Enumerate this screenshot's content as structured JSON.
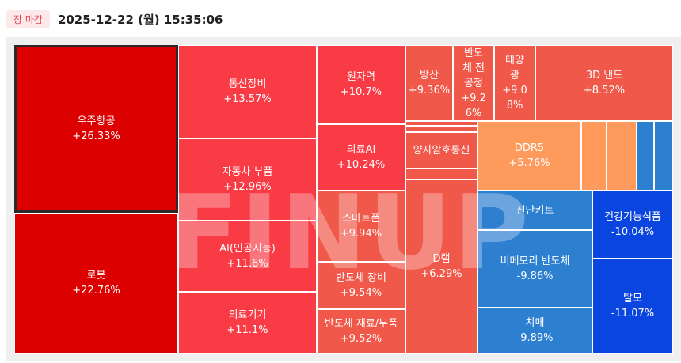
{
  "status_badge": "장 마감",
  "timestamp": "2025-12-22 (월) 15:35:06",
  "watermark": "FINUP",
  "tiles": {
    "space": {
      "name": "우주항공",
      "change": "+26.33%",
      "color": "#dc0000"
    },
    "robot": {
      "name": "로봇",
      "change": "+22.76%",
      "color": "#dc0000"
    },
    "telecom": {
      "name": "통신장비",
      "change": "+13.57%",
      "color": "#f83b45"
    },
    "auto_parts": {
      "name": "자동차 부품",
      "change": "+12.96%",
      "color": "#f83b45"
    },
    "ai": {
      "name": "AI(인공지능)",
      "change": "+11.6%",
      "color": "#f83b45"
    },
    "medical_device": {
      "name": "의료기기",
      "change": "+11.1%",
      "color": "#f83b45"
    },
    "nuclear": {
      "name": "원자력",
      "change": "+10.7%",
      "color": "#f83b45"
    },
    "medical_ai": {
      "name": "의료AI",
      "change": "+10.24%",
      "color": "#f83b45"
    },
    "smartphone": {
      "name": "스마트폰",
      "change": "+9.94%",
      "color": "#f0584a"
    },
    "semi_equipment": {
      "name": "반도체 장비",
      "change": "+9.54%",
      "color": "#f0584a"
    },
    "semi_materials": {
      "name": "반도체 재료/부품",
      "change": "+9.52%",
      "color": "#f0584a"
    },
    "defense": {
      "name": "방산",
      "change": "+9.36%",
      "color": "#f0584a"
    },
    "semi_front": {
      "name": "반도체 전공정",
      "change": "+9.26%",
      "color": "#f0584a"
    },
    "solar": {
      "name": "태양광",
      "change": "+9.08%",
      "color": "#f0584a"
    },
    "nand3d": {
      "name": "3D 낸드",
      "change": "+8.52%",
      "color": "#f0584a"
    },
    "quantum_crypto": {
      "name": "양자암호통신",
      "change": "",
      "color": "#f0584a"
    },
    "dram": {
      "name": "D램",
      "change": "+6.29%",
      "color": "#f0584a"
    },
    "ddr5": {
      "name": "DDR5",
      "change": "+5.76%",
      "color": "#fd9a5c"
    },
    "diagnostic_kit": {
      "name": "진단키트",
      "change": "",
      "color": "#2d7fd0"
    },
    "non_memory": {
      "name": "비메모리 반도체",
      "change": "-9.86%",
      "color": "#2d7fd0"
    },
    "dementia": {
      "name": "치매",
      "change": "-9.89%",
      "color": "#2d7fd0"
    },
    "health_food": {
      "name": "건강기능식품",
      "change": "-10.04%",
      "color": "#0b45e0"
    },
    "hair_loss": {
      "name": "탈모",
      "change": "-11.07%",
      "color": "#0b45e0"
    },
    "blank_colors": {
      "red_small": "#f0584a",
      "orange_small": "#fd9a5c",
      "blue_small": "#2d7fd0"
    }
  }
}
